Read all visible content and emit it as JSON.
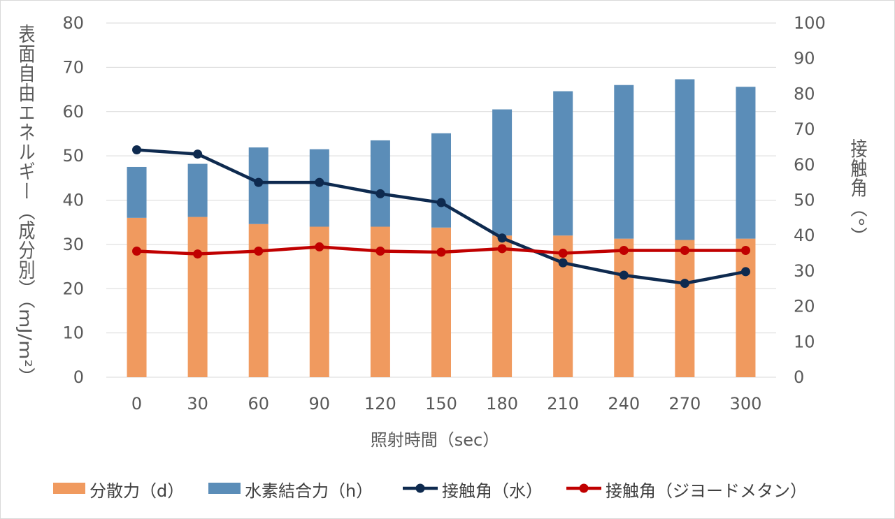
{
  "chart_data": {
    "type": "bar",
    "categories": [
      "0",
      "30",
      "60",
      "90",
      "120",
      "150",
      "180",
      "210",
      "240",
      "270",
      "300"
    ],
    "xlabel": "照射時間（sec）",
    "ylabel_left": "表面自由エネルギー（成分別）（mJ/m²）",
    "ylabel_right": "接触角（°）",
    "ylim_left": [
      0,
      80
    ],
    "ylim_right": [
      0,
      100
    ],
    "yticks_left": [
      "0",
      "10",
      "20",
      "30",
      "40",
      "50",
      "60",
      "70",
      "80"
    ],
    "yticks_right": [
      "0",
      "10",
      "20",
      "30",
      "40",
      "50",
      "60",
      "70",
      "80",
      "90",
      "100"
    ],
    "grid": true,
    "legend_position": "bottom",
    "stacked_series": [
      {
        "name": "分散力（d）",
        "color": "#F09A5F",
        "values": [
          36.0,
          36.2,
          34.6,
          34.0,
          34.0,
          33.8,
          32.0,
          32.0,
          31.3,
          31.0,
          31.3
        ]
      },
      {
        "name": "水素結合力（h）",
        "color": "#5B8DB8",
        "values": [
          11.5,
          12.0,
          17.3,
          17.5,
          19.5,
          21.3,
          28.5,
          32.6,
          34.7,
          36.3,
          34.3
        ]
      }
    ],
    "line_series": [
      {
        "name": "接触角（水）",
        "color": "#0E2A4F",
        "axis": "right",
        "values": [
          64.2,
          63.0,
          55.0,
          55.0,
          51.8,
          49.3,
          39.3,
          32.3,
          28.8,
          26.5,
          29.8
        ]
      },
      {
        "name": "接触角（ジヨードメタン）",
        "color": "#C00000",
        "axis": "right",
        "values": [
          35.6,
          34.8,
          35.6,
          36.8,
          35.6,
          35.3,
          36.3,
          35.0,
          35.8,
          35.8,
          35.8
        ]
      }
    ]
  }
}
